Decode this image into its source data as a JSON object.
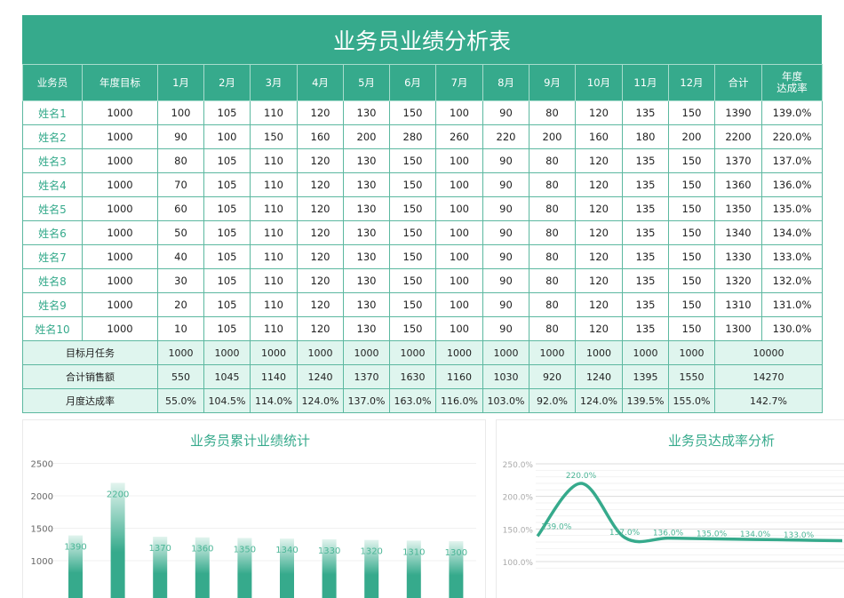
{
  "title": "业务员业绩分析表",
  "headers": [
    "业务员",
    "年度目标",
    "1月",
    "2月",
    "3月",
    "4月",
    "5月",
    "6月",
    "7月",
    "8月",
    "9月",
    "10月",
    "11月",
    "12月",
    "合计",
    "年度\n达成率"
  ],
  "rows": [
    [
      "姓名1",
      "1000",
      "100",
      "105",
      "110",
      "120",
      "130",
      "150",
      "100",
      "90",
      "80",
      "120",
      "135",
      "150",
      "1390",
      "139.0%"
    ],
    [
      "姓名2",
      "1000",
      "90",
      "100",
      "150",
      "160",
      "200",
      "280",
      "260",
      "220",
      "200",
      "160",
      "180",
      "200",
      "2200",
      "220.0%"
    ],
    [
      "姓名3",
      "1000",
      "80",
      "105",
      "110",
      "120",
      "130",
      "150",
      "100",
      "90",
      "80",
      "120",
      "135",
      "150",
      "1370",
      "137.0%"
    ],
    [
      "姓名4",
      "1000",
      "70",
      "105",
      "110",
      "120",
      "130",
      "150",
      "100",
      "90",
      "80",
      "120",
      "135",
      "150",
      "1360",
      "136.0%"
    ],
    [
      "姓名5",
      "1000",
      "60",
      "105",
      "110",
      "120",
      "130",
      "150",
      "100",
      "90",
      "80",
      "120",
      "135",
      "150",
      "1350",
      "135.0%"
    ],
    [
      "姓名6",
      "1000",
      "50",
      "105",
      "110",
      "120",
      "130",
      "150",
      "100",
      "90",
      "80",
      "120",
      "135",
      "150",
      "1340",
      "134.0%"
    ],
    [
      "姓名7",
      "1000",
      "40",
      "105",
      "110",
      "120",
      "130",
      "150",
      "100",
      "90",
      "80",
      "120",
      "135",
      "150",
      "1330",
      "133.0%"
    ],
    [
      "姓名8",
      "1000",
      "30",
      "105",
      "110",
      "120",
      "130",
      "150",
      "100",
      "90",
      "80",
      "120",
      "135",
      "150",
      "1320",
      "132.0%"
    ],
    [
      "姓名9",
      "1000",
      "20",
      "105",
      "110",
      "120",
      "130",
      "150",
      "100",
      "90",
      "80",
      "120",
      "135",
      "150",
      "1310",
      "131.0%"
    ],
    [
      "姓名10",
      "1000",
      "10",
      "105",
      "110",
      "120",
      "130",
      "150",
      "100",
      "90",
      "80",
      "120",
      "135",
      "150",
      "1300",
      "130.0%"
    ]
  ],
  "summary": [
    [
      "目标月任务",
      "1000",
      "1000",
      "1000",
      "1000",
      "1000",
      "1000",
      "1000",
      "1000",
      "1000",
      "1000",
      "1000",
      "1000",
      "10000"
    ],
    [
      "合计销售额",
      "550",
      "1045",
      "1140",
      "1240",
      "1370",
      "1630",
      "1160",
      "1030",
      "920",
      "1240",
      "1395",
      "1550",
      "14270"
    ],
    [
      "月度达成率",
      "55.0%",
      "104.5%",
      "114.0%",
      "124.0%",
      "137.0%",
      "163.0%",
      "116.0%",
      "103.0%",
      "92.0%",
      "124.0%",
      "139.5%",
      "155.0%",
      "142.7%"
    ]
  ],
  "colors": {
    "accent": "#36aa8c",
    "summary_bg": "#dff5ee"
  },
  "chart_data": [
    {
      "type": "bar",
      "title": "业务员累计业绩统计",
      "categories": [
        "姓名1",
        "姓名2",
        "姓名3",
        "姓名4",
        "姓名5",
        "姓名6",
        "姓名7",
        "姓名8",
        "姓名9",
        "姓名10"
      ],
      "values": [
        1390,
        2200,
        1370,
        1360,
        1350,
        1340,
        1330,
        1320,
        1310,
        1300
      ],
      "yticks": [
        "1000",
        "1500",
        "2000",
        "2500"
      ],
      "ylim": [
        1000,
        2500
      ],
      "grid": true
    },
    {
      "type": "line",
      "title": "业务员达成率分析",
      "values": [
        139.0,
        220.0,
        137.0,
        136.0,
        135.0,
        134.0,
        133.0
      ],
      "labels": [
        "139.0%",
        "220.0%",
        "137.0%",
        "136.0%",
        "135.0%",
        "134.0%",
        "133.0%"
      ],
      "yticks": [
        "100.0%",
        "150.0%",
        "200.0%",
        "250.0%"
      ],
      "ylim": [
        100,
        250
      ],
      "grid": true,
      "smooth": true
    }
  ]
}
